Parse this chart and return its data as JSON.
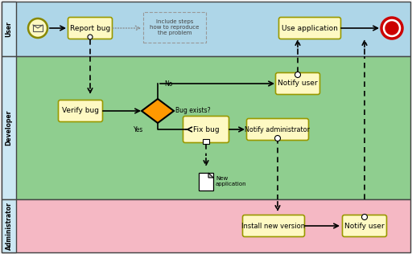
{
  "bg_color": "#f5f5f5",
  "lane_colors": [
    "#aed6e8",
    "#8fce8f",
    "#f5b8c4"
  ],
  "lane_label_color": "#ddeeff",
  "lane_labels": [
    "User",
    "Developer",
    "Administrator"
  ],
  "task_fill": "#fef9c3",
  "task_edge": "#999900",
  "diamond_fill": "#ff9900",
  "diamond_edge": "#000000",
  "end_outer": "#cc0000",
  "end_inner": "#cc0000",
  "start_fill": "#fef9c3",
  "doc_fill": "#ffffff",
  "annotation_text_color": "#444444",
  "annotation_border": "#aaaaaa"
}
